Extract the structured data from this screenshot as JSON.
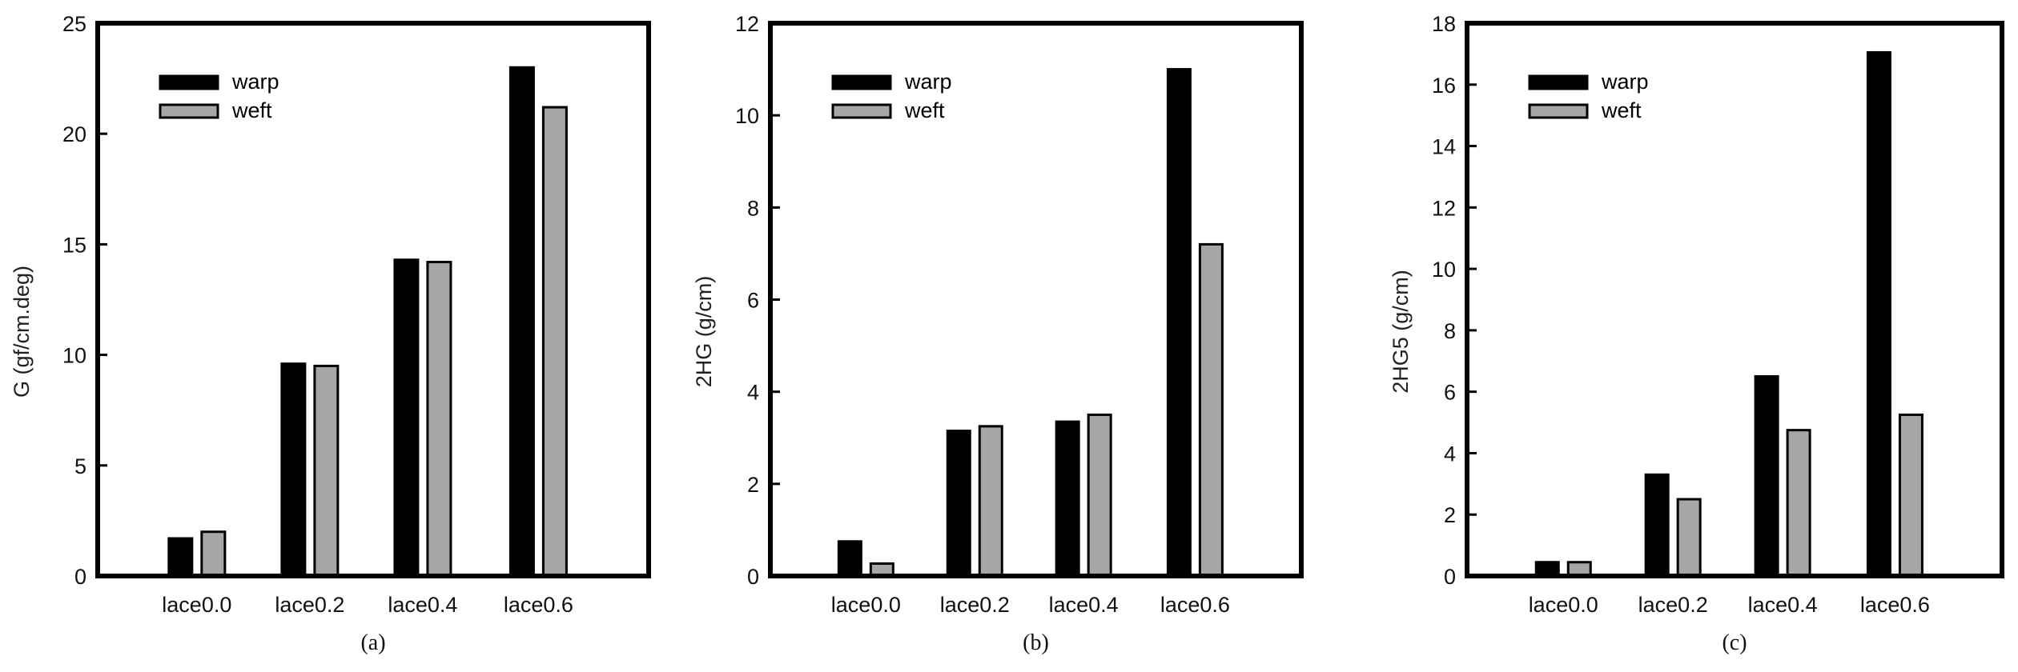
{
  "chart_data": [
    {
      "type": "bar",
      "panel_label": "(a)",
      "ylabel": "G (gf/cm.deg)",
      "xlabel": "",
      "categories": [
        "lace0.0",
        "lace0.2",
        "lace0.4",
        "lace0.6"
      ],
      "ylim": [
        0,
        25
      ],
      "yticks": [
        0,
        5,
        10,
        15,
        20,
        25
      ],
      "grid": false,
      "legend_position": "top-left",
      "series": [
        {
          "name": "warp",
          "color": "#000000",
          "values": [
            1.7,
            9.6,
            14.3,
            23.0
          ]
        },
        {
          "name": "weft",
          "color": "#a6a6a6",
          "values": [
            2.0,
            9.5,
            14.2,
            21.2
          ]
        }
      ]
    },
    {
      "type": "bar",
      "panel_label": "(b)",
      "ylabel": "2HG (g/cm)",
      "xlabel": "",
      "categories": [
        "lace0.0",
        "lace0.2",
        "lace0.4",
        "lace0.6"
      ],
      "ylim": [
        0,
        12
      ],
      "yticks": [
        0,
        2,
        4,
        6,
        8,
        10,
        12
      ],
      "grid": false,
      "legend_position": "top-left",
      "series": [
        {
          "name": "warp",
          "color": "#000000",
          "values": [
            0.75,
            3.15,
            3.35,
            11.0
          ]
        },
        {
          "name": "weft",
          "color": "#a6a6a6",
          "values": [
            0.27,
            3.25,
            3.5,
            7.2
          ]
        }
      ]
    },
    {
      "type": "bar",
      "panel_label": "(c)",
      "ylabel": "2HG5 (g/cm)",
      "xlabel": "",
      "categories": [
        "lace0.0",
        "lace0.2",
        "lace0.4",
        "lace0.6"
      ],
      "ylim": [
        0,
        18
      ],
      "yticks": [
        0,
        2,
        4,
        6,
        8,
        10,
        12,
        14,
        16,
        18
      ],
      "grid": false,
      "legend_position": "top-left",
      "series": [
        {
          "name": "warp",
          "color": "#000000",
          "values": [
            0.45,
            3.3,
            6.5,
            17.05
          ]
        },
        {
          "name": "weft",
          "color": "#a6a6a6",
          "values": [
            0.45,
            2.5,
            4.75,
            5.25
          ]
        }
      ]
    }
  ]
}
